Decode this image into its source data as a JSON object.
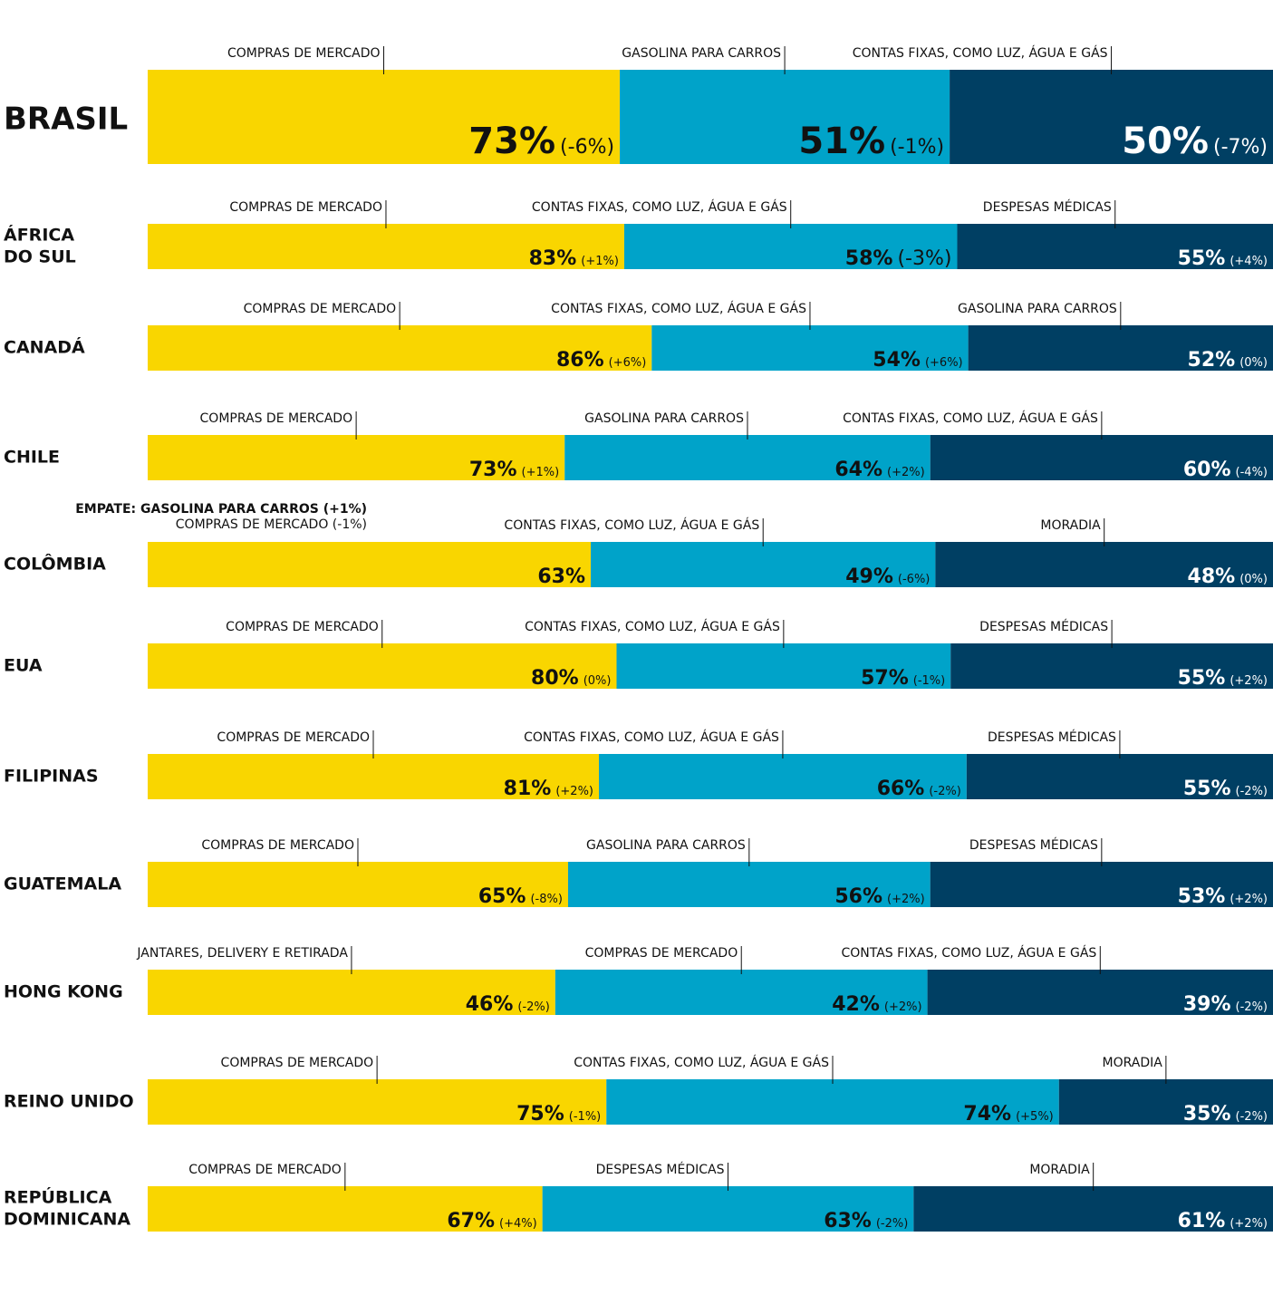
{
  "chart_data": {
    "type": "stacked-bar",
    "colors": [
      "#f9d600",
      "#00a3c9",
      "#003f63"
    ],
    "countries": [
      {
        "name": [
          "BRASIL"
        ],
        "categories": [
          "COMPRAS DE MERCADO",
          "GASOLINA PARA CARROS",
          "CONTAS FIXAS, COMO LUZ, ÁGUA E GÁS"
        ],
        "values": [
          73,
          51,
          50
        ],
        "value_labels": [
          "73%",
          "51%",
          "50%"
        ],
        "changes": [
          "(-6%)",
          "(-1%)",
          "(-7%)"
        ]
      },
      {
        "name": [
          "ÁFRICA",
          "DO SUL"
        ],
        "categories": [
          "COMPRAS DE MERCADO",
          "CONTAS FIXAS, COMO LUZ, ÁGUA E GÁS",
          "DESPESAS MÉDICAS"
        ],
        "values": [
          83,
          58,
          55
        ],
        "value_labels": [
          "83%",
          "58%",
          "55%"
        ],
        "changes": [
          "(+1%)",
          "(-3%)",
          "(+4%)"
        ]
      },
      {
        "name": [
          "CANADÁ"
        ],
        "categories": [
          "COMPRAS DE MERCADO",
          "CONTAS FIXAS, COMO LUZ, ÁGUA E GÁS",
          "GASOLINA PARA CARROS"
        ],
        "values": [
          86,
          54,
          52
        ],
        "value_labels": [
          "86%",
          "54%",
          "52%"
        ],
        "changes": [
          "(+6%)",
          "(+6%)",
          "(0%)"
        ]
      },
      {
        "name": [
          "CHILE"
        ],
        "categories": [
          "COMPRAS DE MERCADO",
          "GASOLINA PARA CARROS",
          "CONTAS FIXAS, COMO LUZ, ÁGUA E GÁS"
        ],
        "values": [
          73,
          64,
          60
        ],
        "value_labels": [
          "73%",
          "64%",
          "60%"
        ],
        "changes": [
          "(+1%)",
          "(+2%)",
          "(-4%)"
        ]
      },
      {
        "name": [
          "COLÔMBIA"
        ],
        "annotation": "EMPATE: GASOLINA PARA CARROS (+1%)",
        "categories": [
          "COMPRAS DE MERCADO (-1%)",
          "CONTAS FIXAS, COMO LUZ, ÁGUA E GÁS",
          "MORADIA"
        ],
        "values": [
          63,
          49,
          48
        ],
        "value_labels": [
          "63%",
          "49%",
          "48%"
        ],
        "changes": [
          null,
          "(-6%)",
          "(0%)"
        ]
      },
      {
        "name": [
          "EUA"
        ],
        "categories": [
          "COMPRAS DE MERCADO",
          "CONTAS FIXAS, COMO LUZ, ÁGUA E GÁS",
          "DESPESAS MÉDICAS"
        ],
        "values": [
          80,
          57,
          55
        ],
        "value_labels": [
          "80%",
          "57%",
          "55%"
        ],
        "changes": [
          "(0%)",
          "(-1%)",
          "(+2%)"
        ]
      },
      {
        "name": [
          "FILIPINAS"
        ],
        "categories": [
          "COMPRAS DE MERCADO",
          "CONTAS FIXAS, COMO LUZ, ÁGUA E GÁS",
          "DESPESAS MÉDICAS"
        ],
        "values": [
          81,
          66,
          55
        ],
        "value_labels": [
          "81%",
          "66%",
          "55%"
        ],
        "changes": [
          "(+2%)",
          "(-2%)",
          "(-2%)"
        ]
      },
      {
        "name": [
          "GUATEMALA"
        ],
        "categories": [
          "COMPRAS DE MERCADO",
          "GASOLINA PARA CARROS",
          "DESPESAS MÉDICAS"
        ],
        "values": [
          65,
          56,
          53
        ],
        "value_labels": [
          "65%",
          "56%",
          "53%"
        ],
        "changes": [
          "(-8%)",
          "(+2%)",
          "(+2%)"
        ]
      },
      {
        "name": [
          "HONG KONG"
        ],
        "categories": [
          "JANTARES, DELIVERY E RETIRADA",
          "COMPRAS DE MERCADO",
          "CONTAS FIXAS, COMO LUZ, ÁGUA E GÁS"
        ],
        "values": [
          46,
          42,
          39
        ],
        "value_labels": [
          "46%",
          "42%",
          "39%"
        ],
        "changes": [
          "(-2%)",
          "(+2%)",
          "(-2%)"
        ]
      },
      {
        "name": [
          "REINO UNIDO"
        ],
        "categories": [
          "COMPRAS DE MERCADO",
          "CONTAS FIXAS, COMO LUZ, ÁGUA E GÁS",
          "MORADIA"
        ],
        "values": [
          75,
          74,
          35
        ],
        "value_labels": [
          "75%",
          "74%",
          "35%"
        ],
        "changes": [
          "(-1%)",
          "(+5%)",
          "(-2%)"
        ]
      },
      {
        "name": [
          "REPÚBLICA",
          "DOMINICANA"
        ],
        "categories": [
          "COMPRAS DE MERCADO",
          "DESPESAS MÉDICAS",
          "MORADIA"
        ],
        "values": [
          67,
          63,
          61
        ],
        "value_labels": [
          "67%",
          "63%",
          "61%"
        ],
        "changes": [
          "(+4%)",
          "(-2%)",
          "(+2%)"
        ]
      }
    ]
  }
}
